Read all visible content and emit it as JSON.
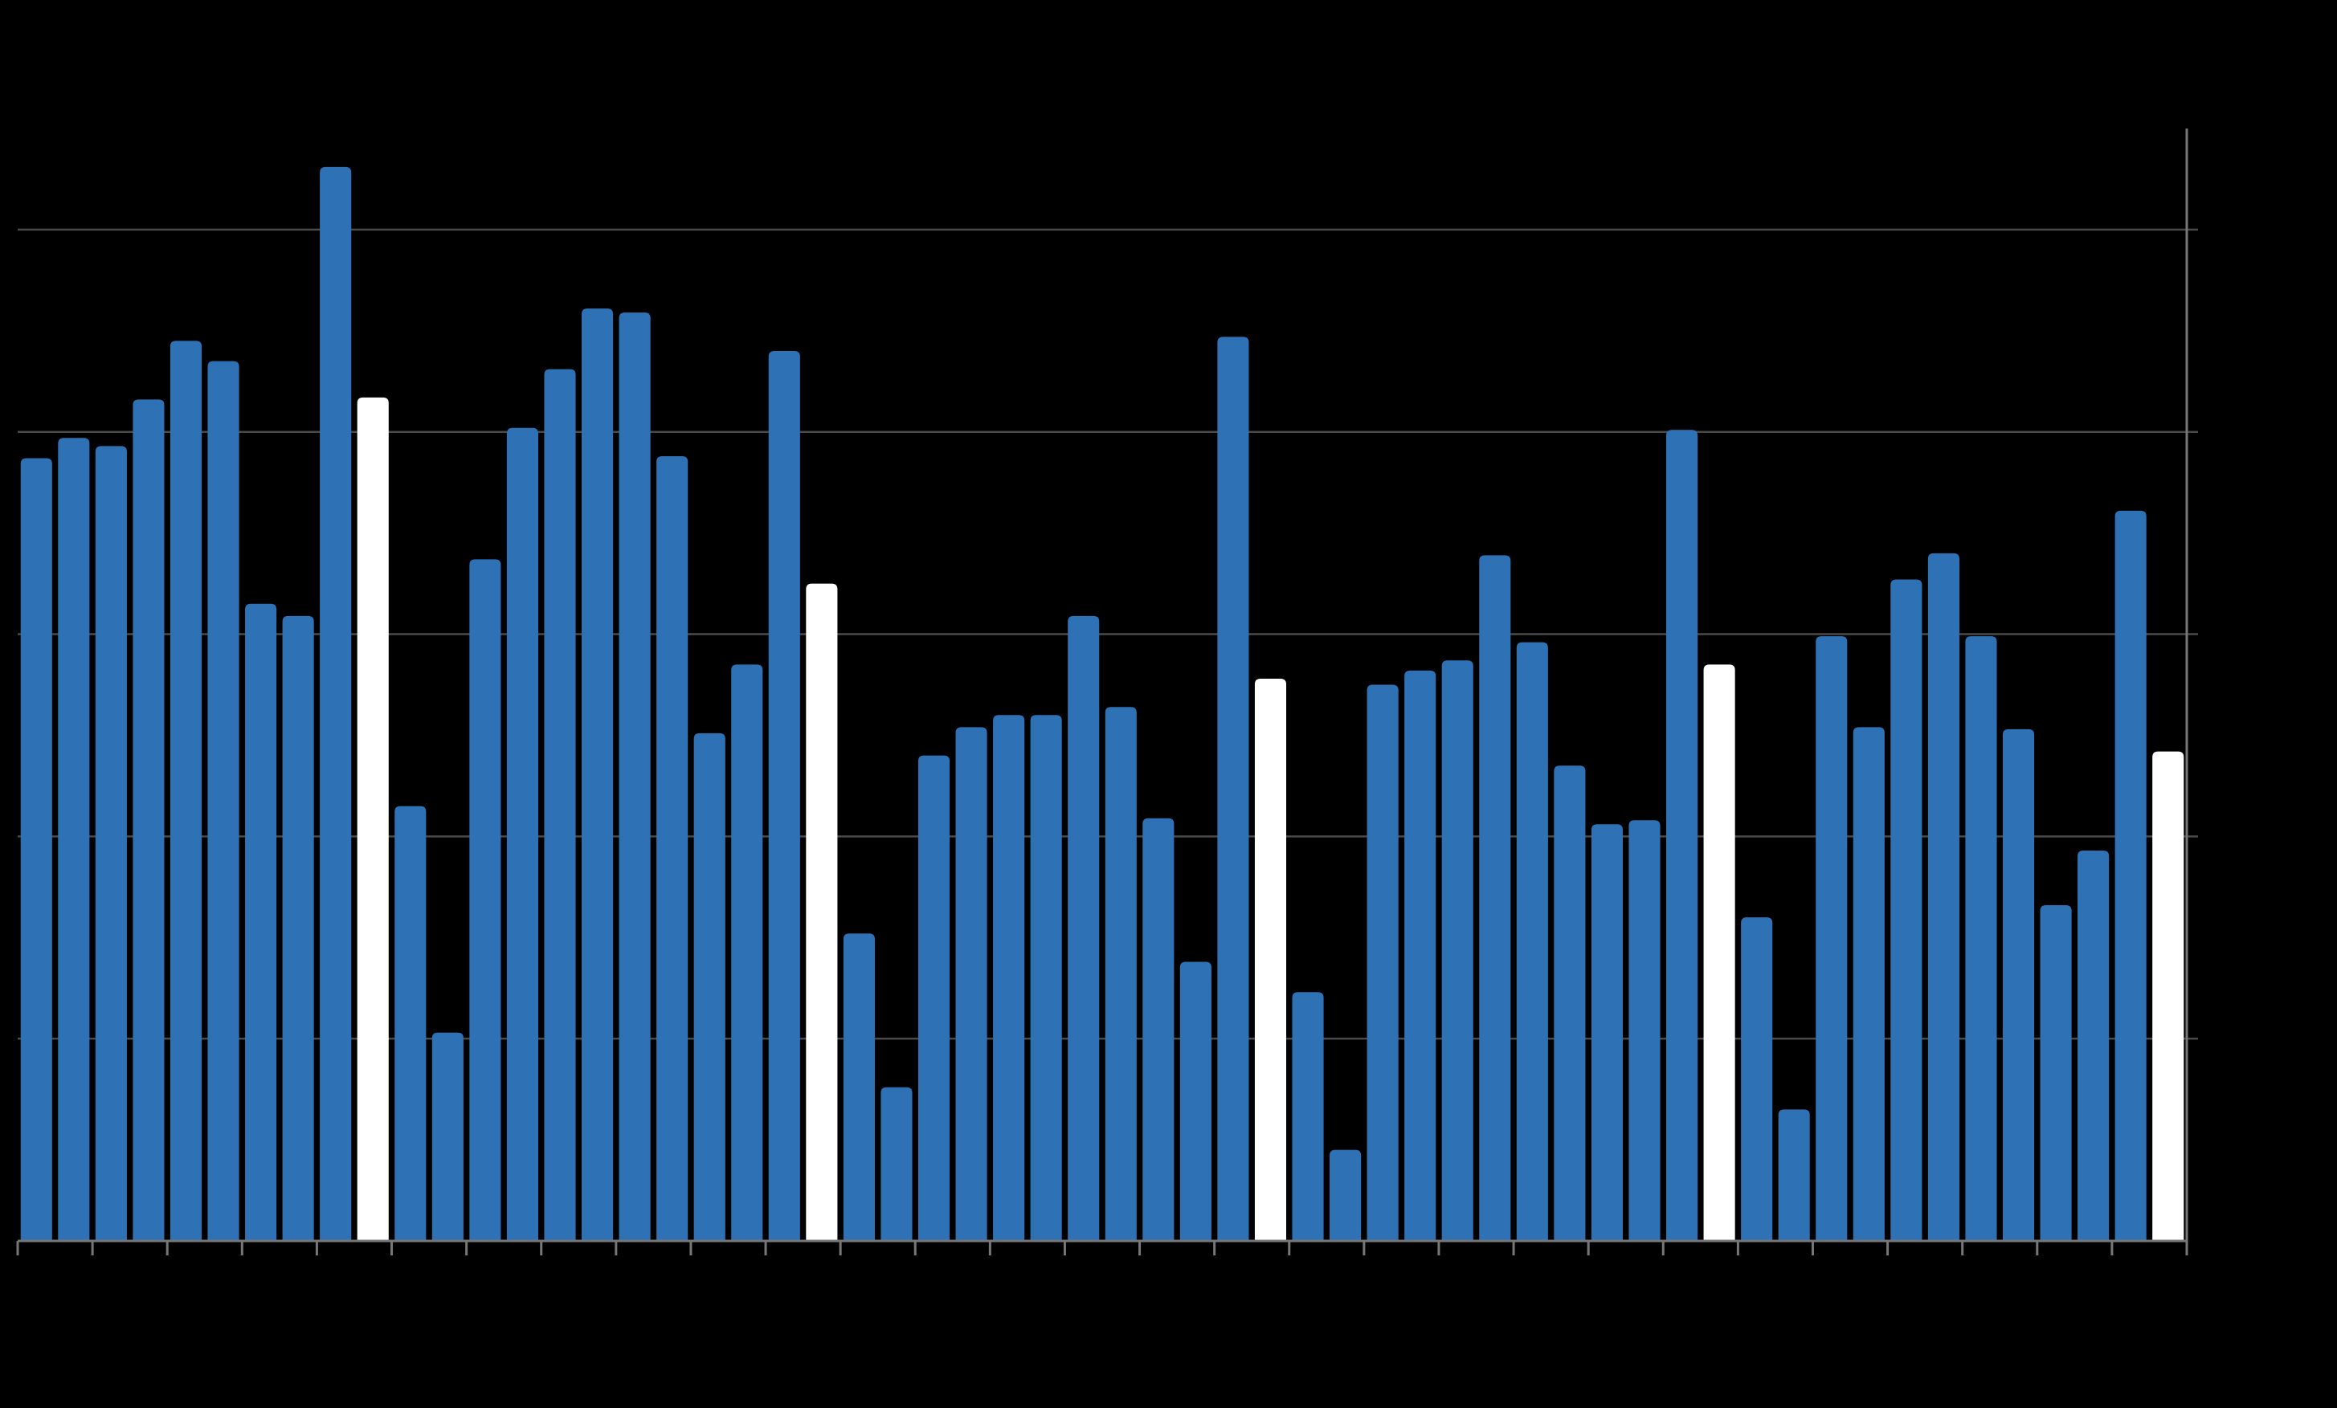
{
  "chart_data": {
    "type": "bar",
    "categories": [
      null,
      null,
      null,
      null,
      null,
      null,
      null,
      null,
      null,
      null,
      null,
      null,
      null,
      null,
      null,
      null,
      null,
      null,
      null,
      null,
      null,
      null,
      null,
      null,
      null,
      null,
      null,
      null,
      null,
      null,
      null,
      null,
      null,
      null,
      null,
      null,
      null,
      null,
      null,
      null,
      null,
      null,
      null,
      null,
      null,
      null,
      null,
      null,
      null,
      null,
      null,
      null,
      null,
      null,
      null,
      null,
      null,
      null
    ],
    "values": [
      3.87,
      3.97,
      3.93,
      4.16,
      4.45,
      4.35,
      3.15,
      3.09,
      5.31,
      4.17,
      2.15,
      1.03,
      3.37,
      4.02,
      4.31,
      4.61,
      4.59,
      3.88,
      2.51,
      2.85,
      4.4,
      3.25,
      1.52,
      0.76,
      2.4,
      2.54,
      2.6,
      2.6,
      3.09,
      2.64,
      2.09,
      1.38,
      4.47,
      2.78,
      1.23,
      0.45,
      2.75,
      2.82,
      2.87,
      3.39,
      2.96,
      2.35,
      2.06,
      2.08,
      4.01,
      2.85,
      1.6,
      0.65,
      2.99,
      2.54,
      3.27,
      3.4,
      2.99,
      2.53,
      1.66,
      1.93,
      3.61,
      2.42
    ],
    "colors": [
      "#2e72b5",
      "#2e72b5",
      "#2e72b5",
      "#2e72b5",
      "#2e72b5",
      "#2e72b5",
      "#2e72b5",
      "#2e72b5",
      "#2e72b5",
      "#ffffff",
      "#2e72b5",
      "#2e72b5",
      "#2e72b5",
      "#2e72b5",
      "#2e72b5",
      "#2e72b5",
      "#2e72b5",
      "#2e72b5",
      "#2e72b5",
      "#2e72b5",
      "#2e72b5",
      "#ffffff",
      "#2e72b5",
      "#2e72b5",
      "#2e72b5",
      "#2e72b5",
      "#2e72b5",
      "#2e72b5",
      "#2e72b5",
      "#2e72b5",
      "#2e72b5",
      "#2e72b5",
      "#2e72b5",
      "#ffffff",
      "#2e72b5",
      "#2e72b5",
      "#2e72b5",
      "#2e72b5",
      "#2e72b5",
      "#2e72b5",
      "#2e72b5",
      "#2e72b5",
      "#2e72b5",
      "#2e72b5",
      "#2e72b5",
      "#ffffff",
      "#2e72b5",
      "#2e72b5",
      "#2e72b5",
      "#2e72b5",
      "#2e72b5",
      "#2e72b5",
      "#2e72b5",
      "#2e72b5",
      "#2e72b5",
      "#2e72b5",
      "#2e72b5",
      "#ffffff"
    ],
    "ylim": [
      0,
      5.5
    ],
    "yticks": [
      0,
      1,
      2,
      3,
      4,
      5
    ],
    "grid": true
  }
}
